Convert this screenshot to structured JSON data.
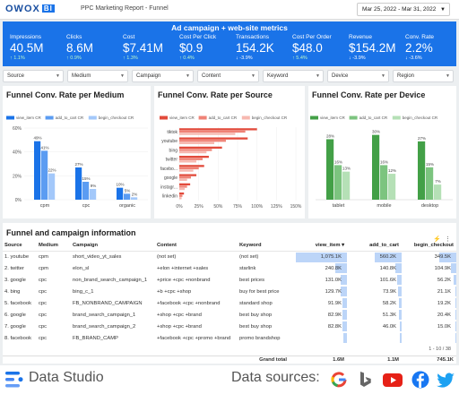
{
  "header": {
    "logo": "OWOX",
    "logo_badge": "BI",
    "title": "PPC Marketing Report - Funnel",
    "date_range": "Mar 25, 2022 - Mar 31, 2022"
  },
  "metrics": {
    "title": "Ad campaign + web-site metrics",
    "items": [
      {
        "label": "Impressions",
        "value": "40.5M",
        "delta": "↑ 1.1%",
        "dir": "up"
      },
      {
        "label": "Clicks",
        "value": "8.6M",
        "delta": "↑ 0.9%",
        "dir": "up"
      },
      {
        "label": "Cost",
        "value": "$7.41M",
        "delta": "↑ 1.3%",
        "dir": "up"
      },
      {
        "label": "Cost Per Click",
        "value": "$0.9",
        "delta": "↑ 0.4%",
        "dir": "up"
      },
      {
        "label": "Transactions",
        "value": "154.2K",
        "delta": "↓ -3.9%",
        "dir": "down"
      },
      {
        "label": "Cost Per Order",
        "value": "$48.0",
        "delta": "↑ 5.4%",
        "dir": "up"
      },
      {
        "label": "Revenue",
        "value": "$154.2M",
        "delta": "↓ -3.9%",
        "dir": "down"
      },
      {
        "label": "Conv. Rate",
        "value": "2.2%",
        "delta": "↓ -3.6%",
        "dir": "down"
      }
    ]
  },
  "filters": [
    "Source",
    "Medium",
    "Campaign",
    "Content",
    "Keyword",
    "Device",
    "Region"
  ],
  "colors": {
    "blue": [
      "#1a73e8",
      "#5b9cf2",
      "#a3c8fa"
    ],
    "red": [
      "#e24a3b",
      "#ef8276",
      "#f7b8b0"
    ],
    "green": [
      "#43a047",
      "#7cc47f",
      "#b5e0b6"
    ]
  },
  "chart_data": [
    {
      "type": "bar",
      "title": "Funnel Conv. Rate per Medium",
      "series": [
        {
          "name": "view_item CR",
          "values": [
            49,
            27,
            10
          ]
        },
        {
          "name": "add_to_cart CR",
          "values": [
            41,
            15,
            5
          ]
        },
        {
          "name": "begin_checkout CR",
          "values": [
            22,
            9,
            2
          ]
        }
      ],
      "categories": [
        "cpm",
        "cpc",
        "organic"
      ],
      "ylim": [
        0,
        60
      ],
      "yticks": [
        "60%",
        "40%",
        "20%",
        "0%"
      ],
      "value_labels": [
        [
          "49%",
          "41%",
          "22%"
        ],
        [
          "27%",
          "15%",
          "9%"
        ],
        [
          "10%",
          "5%",
          "2%"
        ]
      ]
    },
    {
      "type": "bar",
      "orientation": "horizontal",
      "title": "Funnel Conv. Rate per Source",
      "series": [
        {
          "name": "view_item CR",
          "values": [
            100,
            88,
            55,
            38,
            32,
            22,
            14,
            6
          ]
        },
        {
          "name": "add_to_cart CR",
          "values": [
            85,
            60,
            42,
            30,
            25,
            15,
            10,
            4
          ]
        },
        {
          "name": "begin_checkout CR",
          "values": [
            72,
            45,
            35,
            22,
            18,
            10,
            7,
            3
          ]
        }
      ],
      "categories": [
        "tiktok",
        "youtube",
        "bing",
        "twitter",
        "facebo...",
        "google",
        "instagr...",
        "linkedin"
      ],
      "xlim": [
        0,
        150
      ],
      "xticks": [
        "0%",
        "25%",
        "50%",
        "75%",
        "100%",
        "125%",
        "150%"
      ]
    },
    {
      "type": "bar",
      "title": "Funnel Conv. Rate per Device",
      "series": [
        {
          "name": "view_item CR",
          "values": [
            28,
            30,
            27
          ]
        },
        {
          "name": "add_to_cart CR",
          "values": [
            16,
            16,
            15
          ]
        },
        {
          "name": "begin_checkout CR",
          "values": [
            13,
            12,
            7
          ]
        }
      ],
      "categories": [
        "tablet",
        "mobile",
        "desktop"
      ],
      "value_labels": [
        [
          "28%",
          "16%",
          "13%"
        ],
        [
          "30%",
          "16%",
          "12%"
        ],
        [
          "27%",
          "15%",
          "7%"
        ]
      ]
    }
  ],
  "table": {
    "title": "Funnel and campaign information",
    "columns": [
      "Source",
      "Medium",
      "Campaign",
      "Content",
      "Keyword",
      "view_item ▾",
      "add_to_cart",
      "begin_checkout"
    ],
    "rows": [
      [
        "youtube",
        "cpm",
        "short_video_yt_sales",
        "(not set)",
        "(not set)",
        "1,075.1K",
        "560.2K",
        "349.5K",
        1.0,
        0.52,
        0.33
      ],
      [
        "twitter",
        "cpm",
        "elon_sl",
        "+elon +internet +sales",
        "starlink",
        "240.8K",
        "140.8K",
        "104.9K",
        0.22,
        0.13,
        0.1
      ],
      [
        "google",
        "cpc",
        "non_brand_search_campaign_1",
        "+price +cpc +nonbrand",
        "best prices",
        "131.0K",
        "101.6K",
        "56.2K",
        0.12,
        0.09,
        0.05
      ],
      [
        "bing",
        "cpc",
        "bing_c_1",
        "+b +cpc +shop",
        "buy for best price",
        "129.7K",
        "73.9K",
        "21.1K",
        0.12,
        0.07,
        0.02
      ],
      [
        "facebook",
        "cpc",
        "FB_NONBRAND_CAMPAIGN",
        "+facebook +cpc +nonbrand",
        "standard shop",
        "91.9K",
        "58.2K",
        "19.2K",
        0.09,
        0.05,
        0.02
      ],
      [
        "google",
        "cpc",
        "brand_search_campaign_1",
        "+shop +cpc +brand",
        "best buy shop",
        "82.9K",
        "51.3K",
        "20.4K",
        0.08,
        0.05,
        0.02
      ],
      [
        "google",
        "cpc",
        "brand_search_campaign_2",
        "+shop +cpc +brand",
        "best buy shop",
        "82.8K",
        "46.0K",
        "15.0K",
        0.08,
        0.04,
        0.01
      ],
      [
        "facebook",
        "cpc",
        "FB_BRAND_CAMP",
        "+facebook +cpc +promo +brand",
        "promo brandshop",
        "",
        "",
        "",
        0.07,
        0.04,
        0.01
      ]
    ],
    "pager": "1 - 10 / 38",
    "grand_total": {
      "label": "Grand total",
      "values": [
        "1.6M",
        "1.1M",
        "745.1K"
      ]
    }
  },
  "footer": {
    "product": "Data Studio",
    "sources_label": "Data sources:"
  }
}
